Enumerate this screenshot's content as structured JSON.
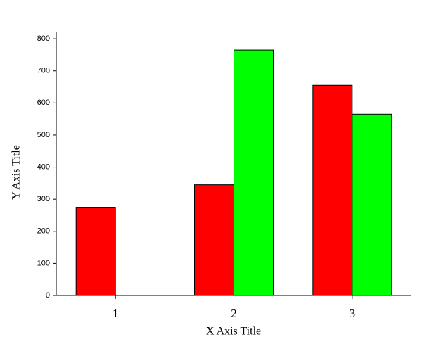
{
  "chart_data": {
    "type": "bar",
    "x_label": "X Axis Title",
    "y_label": "Y Axis Title",
    "categories": [
      "1",
      "2",
      "3"
    ],
    "series": [
      {
        "color": "#ff0000",
        "values": [
          275,
          345,
          655
        ]
      },
      {
        "color": "#00ff00",
        "values": [
          null,
          765,
          565
        ]
      }
    ],
    "ylim": [
      0,
      820
    ],
    "yticks": [
      0,
      100,
      200,
      300,
      400,
      500,
      600,
      700,
      800
    ]
  }
}
